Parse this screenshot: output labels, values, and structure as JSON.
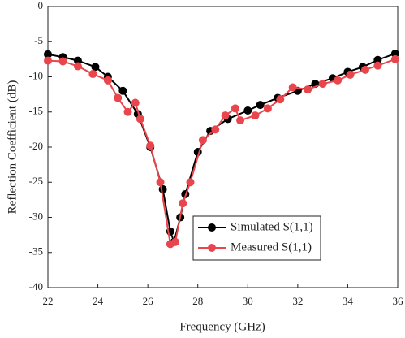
{
  "chart_data": {
    "type": "line",
    "xlabel": "Frequency (GHz)",
    "ylabel": "Reflection Coefficient (dB)",
    "xlim": [
      22,
      36
    ],
    "xticks": [
      22,
      24,
      26,
      28,
      30,
      32,
      34,
      36
    ],
    "ylim": [
      -40,
      0
    ],
    "yticks": [
      0,
      -5,
      -10,
      -15,
      -20,
      -25,
      -30,
      -35,
      -40
    ],
    "legend": "lower right",
    "series": [
      {
        "name": "Simulated S(1,1)",
        "color": "#000000",
        "x": [
          22,
          22.6,
          23.2,
          23.9,
          24.4,
          25,
          25.6,
          26.1,
          26.6,
          26.9,
          27.05,
          27.3,
          27.5,
          28,
          28.5,
          29.2,
          30,
          30.5,
          31.2,
          32,
          32.7,
          33.4,
          34,
          34.6,
          35.2,
          35.9
        ],
        "values": [
          -6.8,
          -7.2,
          -7.7,
          -8.6,
          -10,
          -12,
          -15.3,
          -20,
          -26,
          -32,
          -33.5,
          -30,
          -26.7,
          -20.7,
          -17.7,
          -16,
          -14.8,
          -14,
          -13,
          -12,
          -11,
          -10.2,
          -9.3,
          -8.6,
          -7.6,
          -6.7
        ]
      },
      {
        "name": "Measured S(1,1)",
        "color": "#e8464c",
        "x": [
          22,
          22.6,
          23.2,
          23.8,
          24.4,
          24.8,
          25.2,
          25.5,
          25.7,
          26.1,
          26.5,
          26.9,
          27.1,
          27.4,
          27.7,
          28.2,
          28.7,
          29.1,
          29.5,
          29.7,
          30.3,
          30.8,
          31.3,
          31.8,
          32.4,
          33,
          33.6,
          34.1,
          34.7,
          35.2,
          35.9
        ],
        "values": [
          -7.7,
          -7.8,
          -8.5,
          -9.6,
          -10.5,
          -13,
          -15,
          -13.7,
          -16,
          -19.8,
          -25,
          -33.8,
          -33.5,
          -28,
          -25,
          -19,
          -17.5,
          -15.5,
          -14.5,
          -16.2,
          -15.5,
          -14.5,
          -13.2,
          -11.5,
          -11.8,
          -11,
          -10.5,
          -9.7,
          -9,
          -8.4,
          -7.5
        ]
      }
    ]
  }
}
